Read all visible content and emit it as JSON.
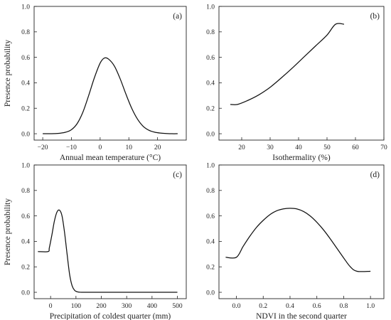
{
  "chart_data": [
    {
      "type": "line",
      "panel_label": "(a)",
      "xlabel": "Annual mean temperature (°C)",
      "ylabel": "Presence probability",
      "xlim": [
        -23,
        30
      ],
      "ylim": [
        -0.05,
        1.0
      ],
      "xticks": [
        -20,
        -10,
        0,
        10,
        20
      ],
      "xtick_labels": [
        "−20",
        "−10",
        "0",
        "10",
        "20"
      ],
      "yticks": [
        0.0,
        0.2,
        0.4,
        0.6,
        0.8,
        1.0
      ],
      "ytick_labels": [
        "0.0",
        "0.2",
        "0.4",
        "0.6",
        "0.8",
        "1.0"
      ],
      "x": [
        -20,
        -18,
        -16,
        -14,
        -12,
        -10,
        -8,
        -6,
        -4,
        -2,
        0,
        1.5,
        3,
        5,
        7,
        9,
        11,
        13,
        15,
        17,
        19,
        21,
        23,
        25,
        27
      ],
      "y": [
        0.0,
        0.0,
        0.001,
        0.004,
        0.012,
        0.032,
        0.08,
        0.17,
        0.3,
        0.44,
        0.555,
        0.595,
        0.585,
        0.53,
        0.43,
        0.31,
        0.2,
        0.115,
        0.058,
        0.027,
        0.012,
        0.005,
        0.002,
        0.0,
        0.0
      ]
    },
    {
      "type": "line",
      "panel_label": "(b)",
      "xlabel": "Isothermality (%)",
      "ylabel": "",
      "xlim": [
        12,
        70
      ],
      "ylim": [
        -0.05,
        1.0
      ],
      "xticks": [
        20,
        30,
        40,
        50,
        60,
        70
      ],
      "xtick_labels": [
        "20",
        "30",
        "40",
        "50",
        "60",
        "70"
      ],
      "yticks": [
        0.0,
        0.2,
        0.4,
        0.6,
        0.8,
        1.0
      ],
      "ytick_labels": [
        "0.0",
        "0.2",
        "0.4",
        "0.6",
        "0.8",
        "1.0"
      ],
      "x": [
        16,
        18.5,
        22,
        26,
        30,
        34,
        38,
        42,
        46,
        50,
        53,
        56
      ],
      "y": [
        0.23,
        0.23,
        0.26,
        0.305,
        0.365,
        0.44,
        0.52,
        0.605,
        0.69,
        0.775,
        0.86,
        0.86
      ]
    },
    {
      "type": "line",
      "panel_label": "(c)",
      "xlabel": "Precipitation of coldest quarter (mm)",
      "ylabel": "Presence probability",
      "xlim": [
        -65,
        535
      ],
      "ylim": [
        -0.05,
        1.0
      ],
      "xticks": [
        0,
        100,
        200,
        300,
        400,
        500
      ],
      "xtick_labels": [
        "0",
        "100",
        "200",
        "300",
        "400",
        "500"
      ],
      "yticks": [
        0.0,
        0.2,
        0.4,
        0.6,
        0.8,
        1.0
      ],
      "ytick_labels": [
        "0.0",
        "0.2",
        "0.4",
        "0.6",
        "0.8",
        "1.0"
      ],
      "x": [
        -50,
        -10,
        -5,
        5,
        15,
        25,
        35,
        45,
        55,
        65,
        75,
        85,
        95,
        105,
        115,
        130,
        200,
        300,
        400,
        500
      ],
      "y": [
        0.32,
        0.32,
        0.35,
        0.45,
        0.56,
        0.63,
        0.645,
        0.6,
        0.47,
        0.3,
        0.14,
        0.05,
        0.015,
        0.004,
        0.001,
        0.0,
        0.0,
        0.0,
        0.0,
        0.0
      ]
    },
    {
      "type": "line",
      "panel_label": "(d)",
      "xlabel": "NDVI in the second quarter",
      "ylabel": "",
      "xlim": [
        -0.13,
        1.1
      ],
      "ylim": [
        -0.05,
        1.0
      ],
      "xticks": [
        0.0,
        0.2,
        0.4,
        0.6,
        0.8,
        1.0
      ],
      "xtick_labels": [
        "0.0",
        "0.2",
        "0.4",
        "0.6",
        "0.8",
        "1.0"
      ],
      "yticks": [
        0.0,
        0.2,
        0.4,
        0.6,
        0.8,
        1.0
      ],
      "ytick_labels": [
        "0.0",
        "0.2",
        "0.4",
        "0.6",
        "0.8",
        "1.0"
      ],
      "x": [
        -0.08,
        0.0,
        0.05,
        0.1,
        0.15,
        0.2,
        0.25,
        0.3,
        0.35,
        0.4,
        0.45,
        0.5,
        0.55,
        0.6,
        0.65,
        0.7,
        0.75,
        0.8,
        0.85,
        0.9,
        1.0
      ],
      "y": [
        0.275,
        0.275,
        0.36,
        0.44,
        0.51,
        0.565,
        0.61,
        0.64,
        0.655,
        0.66,
        0.655,
        0.635,
        0.6,
        0.55,
        0.49,
        0.42,
        0.345,
        0.27,
        0.2,
        0.165,
        0.165
      ]
    }
  ]
}
